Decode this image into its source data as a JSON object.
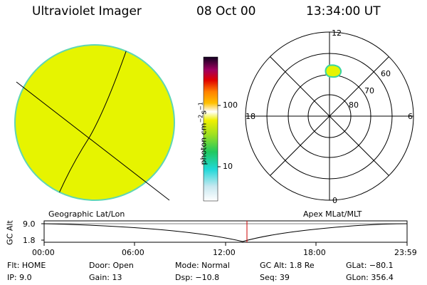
{
  "header": {
    "title": "Ultraviolet Imager",
    "date": "08 Oct 00",
    "time": "13:34:00 UT"
  },
  "colorbar": {
    "label_unit": "photon cm",
    "label_exp1": "−2",
    "label_s": "s",
    "label_exp2": "−1",
    "ticks": [
      "100",
      "10"
    ],
    "scale": "log"
  },
  "polar_plot": {
    "mlt_labels": [
      "12",
      "18",
      "6",
      "0"
    ],
    "mlat_labels": [
      "60",
      "70",
      "80"
    ]
  },
  "colors": {
    "earth_fill": "#e6f400",
    "earth_edge": "#5fd6b4",
    "blob_fill": "#e6f400",
    "blob_edge": "#38d6a0",
    "marker": "#cc0000"
  },
  "timeline": {
    "left_label": "Geographic Lat/Lon",
    "right_label": "Apex MLat/MLT",
    "y_axis_label": "GC Alt",
    "y_ticks": [
      "9.0",
      "1.8"
    ],
    "x_ticks": [
      "00:00",
      "06:00",
      "12:00",
      "18:00",
      "23:59"
    ]
  },
  "info": {
    "flt": "Flt: HOME",
    "ip": "IP:  9.0",
    "door": "Door: Open",
    "gain": "Gain: 13",
    "mode": "Mode: Normal",
    "dsp": "Dsp:  −10.8",
    "gcalt": "GC Alt: 1.8 Re",
    "seq": "Seq: 39",
    "glat": "GLat: −80.1",
    "glon": "GLon: 356.4"
  }
}
